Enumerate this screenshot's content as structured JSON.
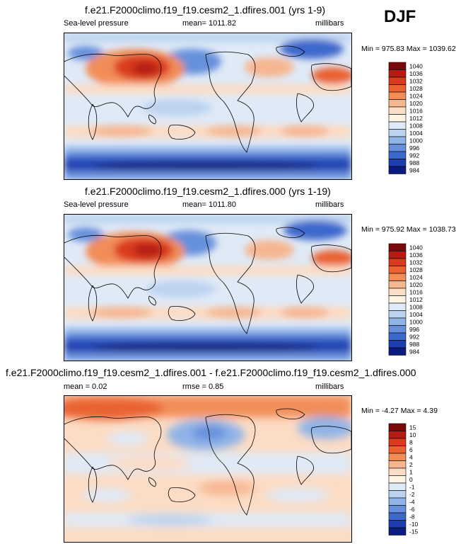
{
  "season": "DJF",
  "panels": [
    {
      "title": "f.e21.F2000climo.f19_f19.cesm2_1.dfires.001 (yrs 1-9)",
      "variable": "Sea-level pressure",
      "mean_text": "mean= 1011.82",
      "units": "millibars",
      "minmax": "Min = 975.83 Max = 1039.62"
    },
    {
      "title": "f.e21.F2000climo.f19_f19.cesm2_1.dfires.000 (yrs 1-19)",
      "variable": "Sea-level pressure",
      "mean_text": "mean= 1011.80",
      "units": "millibars",
      "minmax": "Min = 975.92 Max = 1038.73"
    },
    {
      "title": "f.e21.F2000climo.f19_f19.cesm2_1.dfires.001 - f.e21.F2000climo.f19_f19.cesm2_1.dfires.000",
      "mean_text": "mean =   0.02",
      "rmse_text": "rmse =   0.85",
      "units": "millibars",
      "minmax": "Min =  -4.27 Max =   4.39"
    }
  ],
  "chart_data": [
    {
      "type": "heatmap",
      "title": "f.e21.F2000climo.f19_f19.cesm2_1.dfires.001 (yrs 1-9)",
      "variable": "Sea-level pressure",
      "units": "millibars",
      "mean": 1011.82,
      "min": 975.83,
      "max": 1039.62,
      "colorbar_levels": [
        "1040",
        "1036",
        "1032",
        "1028",
        "1024",
        "1020",
        "1016",
        "1012",
        "1008",
        "1004",
        "1000",
        "996",
        "992",
        "988",
        "984"
      ],
      "colorbar_colors": [
        "#7a0a0a",
        "#b31c12",
        "#d93a1c",
        "#ea6230",
        "#f28d58",
        "#f7b690",
        "#fcdcc4",
        "#fff3e6",
        "#dfeaf7",
        "#bcd3f0",
        "#90b4e8",
        "#6690dc",
        "#3d68cc",
        "#1d3eb0",
        "#0a1c80"
      ]
    },
    {
      "type": "heatmap",
      "title": "f.e21.F2000climo.f19_f19.cesm2_1.dfires.000 (yrs 1-19)",
      "variable": "Sea-level pressure",
      "units": "millibars",
      "mean": 1011.8,
      "min": 975.92,
      "max": 1038.73,
      "colorbar_levels": [
        "1040",
        "1036",
        "1032",
        "1028",
        "1024",
        "1020",
        "1016",
        "1012",
        "1008",
        "1004",
        "1000",
        "996",
        "992",
        "988",
        "984"
      ],
      "colorbar_colors": [
        "#7a0a0a",
        "#b31c12",
        "#d93a1c",
        "#ea6230",
        "#f28d58",
        "#f7b690",
        "#fcdcc4",
        "#fff3e6",
        "#dfeaf7",
        "#bcd3f0",
        "#90b4e8",
        "#6690dc",
        "#3d68cc",
        "#1d3eb0",
        "#0a1c80"
      ]
    },
    {
      "type": "heatmap",
      "title": "f.e21.F2000climo.f19_f19.cesm2_1.dfires.001 - f.e21.F2000climo.f19_f19.cesm2_1.dfires.000",
      "units": "millibars",
      "mean": 0.02,
      "rmse": 0.85,
      "min": -4.27,
      "max": 4.39,
      "colorbar_levels": [
        "15",
        "10",
        "8",
        "6",
        "4",
        "2",
        "1",
        "0",
        "-1",
        "-2",
        "-4",
        "-6",
        "-8",
        "-10",
        "-15"
      ],
      "colorbar_colors": [
        "#7a0a0a",
        "#b31c12",
        "#d93a1c",
        "#ea6230",
        "#f28d58",
        "#f7b690",
        "#fcdcc4",
        "#fff3e6",
        "#dfeaf7",
        "#bcd3f0",
        "#90b4e8",
        "#6690dc",
        "#3d68cc",
        "#1d3eb0",
        "#0a1c80"
      ]
    }
  ]
}
